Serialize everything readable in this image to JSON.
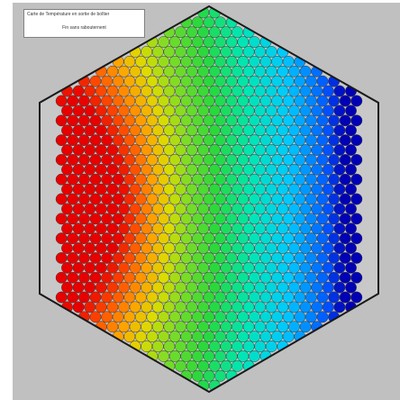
{
  "legend": {
    "title": "Carte de Température en sortie de boîtier",
    "subtitle": "Fin sans rabouternent"
  },
  "colors": {
    "panel_background": "#c0c0c0",
    "outline": "#1a1a1a",
    "cell_border": "#3c3c3c"
  },
  "colormap": [
    "#0000b4",
    "#0050ff",
    "#00c8ff",
    "#00e6b4",
    "#28d83c",
    "#78dc28",
    "#dcdc00",
    "#ffa000",
    "#ff5000",
    "#e60000"
  ],
  "temperature_field": {
    "scale": "relative 0 (coolest, blue) to 1 (hottest, red)",
    "hot_region": "left-centre",
    "cold_region": "right edge"
  }
}
